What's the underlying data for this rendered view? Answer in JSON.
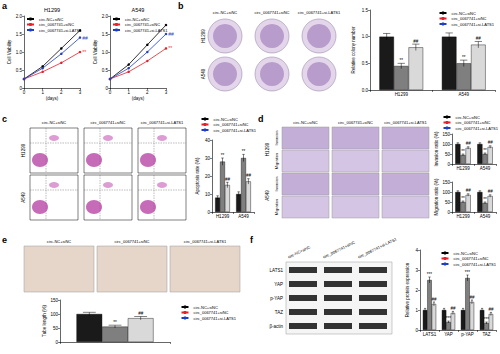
{
  "chart_data": [
    {
      "type": "line",
      "title": "H1299",
      "x": [
        0,
        1,
        2,
        3
      ],
      "xlim": [
        0,
        3
      ],
      "xticks": [
        0,
        1,
        2,
        3
      ],
      "xlabel": "(days)",
      "ylabel": "Cell Viability",
      "ylim": [
        0,
        2
      ],
      "yticks": [
        0,
        0.5,
        {
          "value": 1,
          "label": "1.0"
        },
        1.5,
        {
          "value": 2,
          "label": "2.0"
        }
      ],
      "grid": false,
      "legend": "upper left",
      "series": [
        {
          "name": "circ-NC+siNC",
          "color": "#000000",
          "marker": "circle",
          "values": [
            0.25,
            0.6,
            1.1,
            1.6
          ]
        },
        {
          "name": "circ_0067741+siNC",
          "color": "#e8202a",
          "marker": "circle",
          "values": [
            0.25,
            0.45,
            0.7,
            1.0
          ],
          "annotation": "**"
        },
        {
          "name": "circ_0067741+si-LATS1",
          "color": "#1f3fbf",
          "marker": "circle",
          "values": [
            0.25,
            0.55,
            0.95,
            1.4
          ],
          "annotation": "##"
        }
      ]
    },
    {
      "type": "line",
      "title": "A549",
      "x": [
        0,
        1,
        2,
        3
      ],
      "xlim": [
        0,
        3
      ],
      "xticks": [
        0,
        1,
        2,
        3
      ],
      "xlabel": "(days)",
      "ylabel": "Cell Viability",
      "ylim": [
        0,
        2
      ],
      "yticks": [
        0,
        0.5,
        {
          "value": 1,
          "label": "1.0"
        },
        1.5,
        {
          "value": 2,
          "label": "2.0"
        }
      ],
      "grid": false,
      "legend": "upper left",
      "series": [
        {
          "name": "circ-NC+siNC",
          "color": "#000000",
          "marker": "circle",
          "values": [
            0.25,
            0.65,
            1.2,
            1.75
          ]
        },
        {
          "name": "circ_0067741+siNC",
          "color": "#e8202a",
          "marker": "circle",
          "values": [
            0.25,
            0.45,
            0.75,
            1.1
          ],
          "annotation": "**"
        },
        {
          "name": "circ_0067741+si-LATS1",
          "color": "#1f3fbf",
          "marker": "circle",
          "values": [
            0.25,
            0.55,
            1.0,
            1.5
          ],
          "annotation": "##"
        }
      ]
    },
    {
      "type": "bar",
      "categories": [
        "H1299",
        "A549"
      ],
      "ylabel": "Relative colony number",
      "ylim": [
        0,
        1.5
      ],
      "yticks": [
        {
          "value": 0,
          "label": "0.0"
        },
        0.5,
        {
          "value": 1,
          "label": "1.0"
        },
        1.5
      ],
      "grid": false,
      "legend": "upper right",
      "series": [
        {
          "name": "circ-NC+siNC",
          "color": "#1a1a1a",
          "values": [
            1.0,
            1.0
          ],
          "errors": [
            0.06,
            0.07
          ]
        },
        {
          "name": "circ_0067741+siNC",
          "color": "#7f7f7f",
          "values": [
            0.45,
            0.5
          ],
          "errors": [
            0.05,
            0.06
          ],
          "annotations": [
            "**",
            "**"
          ]
        },
        {
          "name": "circ_0067741+si-LATS1",
          "color": "#d9d9d9",
          "values": [
            0.8,
            0.85
          ],
          "errors": [
            0.06,
            0.06
          ],
          "annotations": [
            "##",
            "##"
          ]
        }
      ]
    },
    {
      "type": "bar",
      "categories": [
        "H1299",
        "A549"
      ],
      "ylabel": "Apoptosis rate (%)",
      "ylim": [
        0,
        40
      ],
      "yticks": [
        0,
        10,
        20,
        30,
        40
      ],
      "grid": false,
      "legend": "upper right",
      "series": [
        {
          "name": "circ-NC+siNC",
          "color": "#1a1a1a",
          "values": [
            8,
            10
          ],
          "errors": [
            1,
            1.2
          ]
        },
        {
          "name": "circ_0067741+siNC",
          "color": "#7f7f7f",
          "values": [
            28,
            30
          ],
          "errors": [
            2,
            2
          ],
          "annotations": [
            "**",
            "**"
          ]
        },
        {
          "name": "circ_0067741+si-LATS1",
          "color": "#d9d9d9",
          "values": [
            15,
            17
          ],
          "errors": [
            1.5,
            1.5
          ],
          "annotations": [
            "##",
            "##"
          ]
        }
      ]
    },
    {
      "type": "bar",
      "categories": [
        "H1299",
        "A549"
      ],
      "ylabel": "Invasion ratio (%)",
      "ylim": [
        0,
        150
      ],
      "yticks": [
        0,
        50,
        100,
        150
      ],
      "grid": false,
      "legend": "upper right",
      "series": [
        {
          "name": "circ-NC+siNC",
          "color": "#1a1a1a",
          "values": [
            100,
            100
          ],
          "errors": [
            6,
            6
          ]
        },
        {
          "name": "circ_0067741+siNC",
          "color": "#7f7f7f",
          "values": [
            45,
            50
          ],
          "errors": [
            5,
            5
          ],
          "annotations": [
            "**",
            "**"
          ]
        },
        {
          "name": "circ_0067741+si-LATS1",
          "color": "#d9d9d9",
          "values": [
            80,
            85
          ],
          "errors": [
            6,
            6
          ],
          "annotations": [
            "##",
            "##"
          ]
        }
      ]
    },
    {
      "type": "bar",
      "categories": [
        "H1299",
        "A549"
      ],
      "ylabel": "Migration ratio (%)",
      "ylim": [
        0,
        150
      ],
      "yticks": [
        0,
        50,
        100,
        150
      ],
      "grid": false,
      "series": [
        {
          "color": "#1a1a1a",
          "values": [
            100,
            100
          ],
          "errors": [
            6,
            6
          ]
        },
        {
          "color": "#7f7f7f",
          "values": [
            50,
            45
          ],
          "errors": [
            5,
            5
          ],
          "annotations": [
            "**",
            "**"
          ]
        },
        {
          "color": "#d9d9d9",
          "values": [
            85,
            80
          ],
          "errors": [
            6,
            6
          ],
          "annotations": [
            "##",
            "##"
          ]
        }
      ]
    },
    {
      "type": "bar",
      "categories": [
        null
      ],
      "ylabel": "Tube length (%)",
      "ylim": [
        0,
        150
      ],
      "yticks": [
        0,
        50,
        100,
        150
      ],
      "grid": false,
      "legend": "right",
      "series": [
        {
          "name": "circ-NC+siNC",
          "color": "#1a1a1a",
          "values": [
            100
          ],
          "errors": [
            6
          ]
        },
        {
          "name": "circ_0067741+siNC",
          "color": "#7f7f7f",
          "values": [
            55
          ],
          "errors": [
            5
          ],
          "annotations": [
            "**"
          ]
        },
        {
          "name": "circ_0067741+si-LATS1",
          "color": "#d9d9d9",
          "values": [
            85
          ],
          "errors": [
            6
          ],
          "annotations": [
            "##"
          ]
        }
      ]
    },
    {
      "type": "bar",
      "categories": [
        "LATS1",
        "YAP",
        "p-YAP",
        "TAZ"
      ],
      "ylabel": "Relative protein expression",
      "ylim": [
        0,
        4
      ],
      "yticks": [
        0,
        1,
        2,
        3,
        4
      ],
      "grid": false,
      "legend": "upper right",
      "series": [
        {
          "name": "circ-NC+siNC",
          "color": "#1a1a1a",
          "values": [
            1,
            1,
            1,
            1
          ],
          "errors": [
            0.08,
            0.08,
            0.08,
            0.08
          ]
        },
        {
          "name": "circ_0067741+siNC",
          "color": "#7f7f7f",
          "values": [
            2.5,
            0.4,
            2.6,
            0.35
          ],
          "errors": [
            0.15,
            0.05,
            0.15,
            0.05
          ],
          "annotations": [
            "***",
            "***",
            "***",
            "***"
          ]
        },
        {
          "name": "circ_0067741+si-LATS1",
          "color": "#d9d9d9",
          "values": [
            1.3,
            0.85,
            1.4,
            0.8
          ],
          "errors": [
            0.1,
            0.08,
            0.1,
            0.08
          ],
          "annotations": [
            "##",
            "##",
            "##",
            "##"
          ]
        }
      ]
    }
  ],
  "panels": [
    {
      "label": "a"
    },
    {
      "label": "b",
      "images": {
        "rows": [
          "H1299",
          "A549"
        ],
        "columns": [
          "circ-NC+siNC",
          "circ_0067741+siNC",
          "circ_0067741+si-LATS1"
        ]
      }
    },
    {
      "label": "c",
      "images": {
        "rows": [
          "H1299",
          "A549"
        ],
        "columns": [
          "circ-NC+siNC",
          "circ_0067741+siNC",
          "circ_0067741+si-LATS1"
        ]
      }
    },
    {
      "label": "d",
      "images": {
        "rows": [
          {
            "label": "H1299",
            "assays": [
              "Invasion",
              "Migration"
            ]
          },
          {
            "label": "A549",
            "assays": [
              "Invasion",
              "Migration"
            ]
          }
        ],
        "columns": [
          "circ-NC+siNC",
          "circ_0067741+siNC",
          "circ_0067741+si-LATS1"
        ]
      }
    },
    {
      "label": "e",
      "images": {
        "columns": [
          "circ-NC+siNC",
          "circ_0067741+siNC",
          "circ_0067741+si-LATS1"
        ]
      }
    },
    {
      "label": "f",
      "images": {
        "rows": [
          "LATS1",
          "YAP",
          "p-YAP",
          "TAZ",
          "β-actin"
        ],
        "columns": [
          "circ-NC+siNC",
          "circ_0067741+siNC",
          "circ_0067741+si-LATS1"
        ]
      }
    }
  ]
}
